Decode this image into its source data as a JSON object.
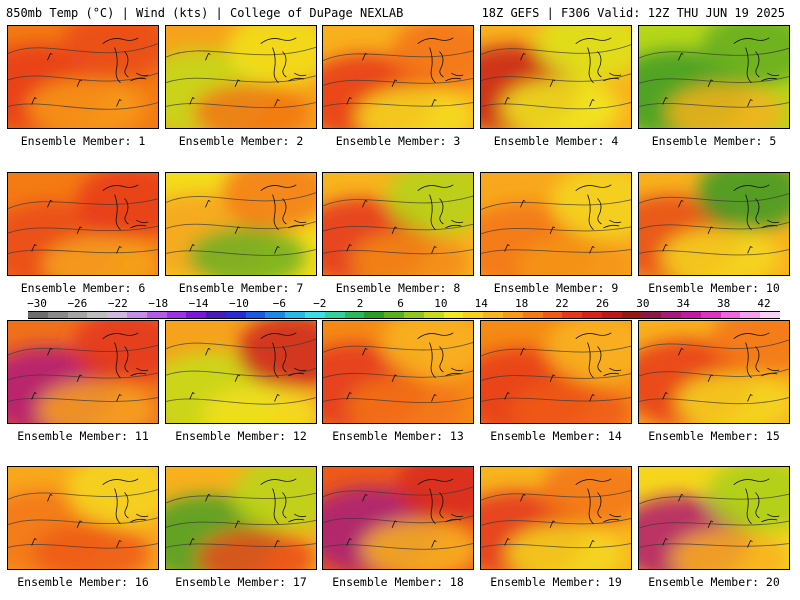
{
  "header": {
    "left": "850mb Temp (°C) | Wind (kts) | College of DuPage NEXLAB",
    "right": "18Z GEFS | F306 Valid: 12Z THU JUN 19 2025"
  },
  "panels": [
    {
      "label": "Ensemble Member: 1",
      "base": "#f37a12",
      "blobs": [
        {
          "c": "#e83a1a"
        },
        {
          "c": "#ea4a1b"
        },
        {
          "c": "#f79a18"
        }
      ]
    },
    {
      "label": "Ensemble Member: 2",
      "base": "#f7a21c",
      "blobs": [
        {
          "c": "#c2db17"
        },
        {
          "c": "#f1e21b"
        },
        {
          "c": "#f27612"
        }
      ]
    },
    {
      "label": "Ensemble Member: 3",
      "base": "#f8b01d",
      "blobs": [
        {
          "c": "#e8361a"
        },
        {
          "c": "#f37216"
        },
        {
          "c": "#f5dd1c"
        }
      ]
    },
    {
      "label": "Ensemble Member: 4",
      "base": "#f8b21d",
      "blobs": [
        {
          "c": "#c8211a"
        },
        {
          "c": "#dde41a"
        },
        {
          "c": "#f0ea1c"
        }
      ]
    },
    {
      "label": "Ensemble Member: 5",
      "base": "#b6d618",
      "blobs": [
        {
          "c": "#3e9b24"
        },
        {
          "c": "#63ad22"
        },
        {
          "c": "#f4b21c"
        }
      ]
    },
    {
      "label": "Ensemble Member: 6",
      "base": "#f47a14",
      "blobs": [
        {
          "c": "#ea4a1b"
        },
        {
          "c": "#e8391a"
        },
        {
          "c": "#f6a51b"
        }
      ]
    },
    {
      "label": "Ensemble Member: 7",
      "base": "#f4dc1c",
      "blobs": [
        {
          "c": "#f7a21c"
        },
        {
          "c": "#f47a14"
        },
        {
          "c": "#6faf22"
        }
      ]
    },
    {
      "label": "Ensemble Member: 8",
      "base": "#f8b41d",
      "blobs": [
        {
          "c": "#e4321c"
        },
        {
          "c": "#b4d418"
        },
        {
          "c": "#f38a15"
        }
      ]
    },
    {
      "label": "Ensemble Member: 9",
      "base": "#f8a81c",
      "blobs": [
        {
          "c": "#f37416"
        },
        {
          "c": "#f5d61c"
        },
        {
          "c": "#f49516"
        }
      ]
    },
    {
      "label": "Ensemble Member: 10",
      "base": "#f8b21d",
      "blobs": [
        {
          "c": "#e84a1b"
        },
        {
          "c": "#3a9a24"
        },
        {
          "c": "#f5d81c"
        }
      ]
    },
    {
      "label": "Ensemble Member: 11",
      "base": "#f0701a",
      "blobs": [
        {
          "c": "#b01a7a"
        },
        {
          "c": "#e4351c"
        },
        {
          "c": "#f7a21c"
        }
      ]
    },
    {
      "label": "Ensemble Member: 12",
      "base": "#f6a21c",
      "blobs": [
        {
          "c": "#c6de1a"
        },
        {
          "c": "#cd251c"
        },
        {
          "c": "#f3e11c"
        }
      ]
    },
    {
      "label": "Ensemble Member: 13",
      "base": "#f58a15",
      "blobs": [
        {
          "c": "#e4351c"
        },
        {
          "c": "#f8b41d"
        },
        {
          "c": "#f37416"
        }
      ]
    },
    {
      "label": "Ensemble Member: 14",
      "base": "#f58a15",
      "blobs": [
        {
          "c": "#e8391a"
        },
        {
          "c": "#f8b41d"
        },
        {
          "c": "#ee5a18"
        }
      ]
    },
    {
      "label": "Ensemble Member: 15",
      "base": "#f8b01d",
      "blobs": [
        {
          "c": "#e8391a"
        },
        {
          "c": "#f37416"
        },
        {
          "c": "#f5d81c"
        }
      ]
    },
    {
      "label": "Ensemble Member: 16",
      "base": "#f8a81c",
      "blobs": [
        {
          "c": "#f37416"
        },
        {
          "c": "#f5d61c"
        },
        {
          "c": "#ee5a18"
        }
      ]
    },
    {
      "label": "Ensemble Member: 17",
      "base": "#f8b01d",
      "blobs": [
        {
          "c": "#4aa023"
        },
        {
          "c": "#b8d618"
        },
        {
          "c": "#ea4a1b"
        }
      ]
    },
    {
      "label": "Ensemble Member: 18",
      "base": "#ee5a18",
      "blobs": [
        {
          "c": "#a8207a"
        },
        {
          "c": "#d8281c"
        },
        {
          "c": "#f8b41d"
        }
      ]
    },
    {
      "label": "Ensemble Member: 19",
      "base": "#f8b41d",
      "blobs": [
        {
          "c": "#e4321c"
        },
        {
          "c": "#f37416"
        },
        {
          "c": "#f5d81c"
        }
      ]
    },
    {
      "label": "Ensemble Member: 20",
      "base": "#f5d61c",
      "blobs": [
        {
          "c": "#b21a70"
        },
        {
          "c": "#a8cf18"
        },
        {
          "c": "#f8b01d"
        }
      ]
    }
  ],
  "colorbar": {
    "ticks": [
      "-30",
      "-26",
      "-22",
      "-18",
      "-14",
      "-10",
      "-6",
      "-2",
      "2",
      "6",
      "10",
      "14",
      "18",
      "22",
      "26",
      "30",
      "34",
      "38",
      "42"
    ],
    "colors": [
      "#6e6e6e",
      "#8a8a8a",
      "#a4a4a4",
      "#bdbdbd",
      "#d2b8e0",
      "#c48ee6",
      "#b35ee6",
      "#9a34e6",
      "#7a1ad8",
      "#4a1ab8",
      "#2a2ad8",
      "#1a5ae6",
      "#1a8ae6",
      "#2abae6",
      "#3ae0e6",
      "#34d0a0",
      "#2aba5a",
      "#2a9e24",
      "#5ab01e",
      "#92c81a",
      "#c6dc18",
      "#f0ea1a",
      "#f6d21a",
      "#f8b81d",
      "#f79a18",
      "#f37a14",
      "#ee5a18",
      "#e6381a",
      "#d8221c",
      "#bb1a1a",
      "#981818",
      "#8a1848",
      "#a81a78",
      "#c21aa0",
      "#dc34c0",
      "#ee68dc",
      "#f6a0ee",
      "#fad0f6"
    ]
  }
}
